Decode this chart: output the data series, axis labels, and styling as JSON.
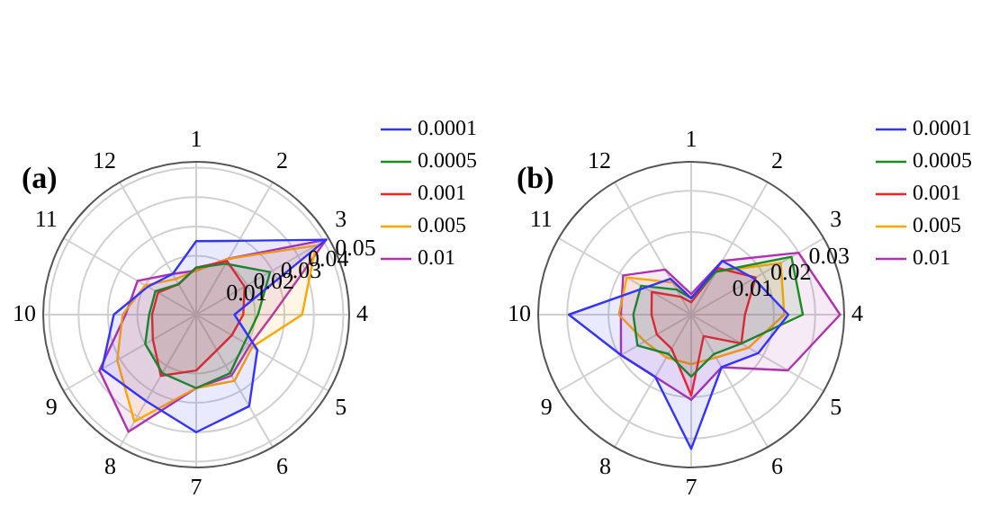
{
  "chart_data": [
    {
      "type": "radar",
      "title": "(a)",
      "categories": [
        "1",
        "2",
        "3",
        "4",
        "5",
        "6",
        "7",
        "8",
        "9",
        "10",
        "11",
        "12"
      ],
      "ylim": [
        0,
        0.052
      ],
      "yticks": [
        0.01,
        0.02,
        0.03,
        0.04,
        0.05
      ],
      "grid": true,
      "legend": "top right",
      "series": [
        {
          "name": "0.0001",
          "color": "#3333ff",
          "values": [
            0.025,
            0.029,
            0.051,
            0.013,
            0.024,
            0.036,
            0.04,
            0.034,
            0.037,
            0.028,
            0.019,
            0.016
          ]
        },
        {
          "name": "0.0005",
          "color": "#1a8c1a",
          "values": [
            0.016,
            0.02,
            0.029,
            0.021,
            0.019,
            0.023,
            0.025,
            0.023,
            0.02,
            0.016,
            0.016,
            0.012
          ]
        },
        {
          "name": "0.001",
          "color": "#ff2020",
          "values": [
            0.016,
            0.021,
            0.019,
            0.016,
            0.014,
            0.014,
            0.019,
            0.024,
            0.017,
            0.015,
            0.015,
            0.012
          ]
        },
        {
          "name": "0.005",
          "color": "#ffa500",
          "values": [
            0.015,
            0.022,
            0.047,
            0.036,
            0.022,
            0.026,
            0.025,
            0.042,
            0.031,
            0.025,
            0.02,
            0.014
          ]
        },
        {
          "name": "0.01",
          "color": "#b030b0",
          "values": [
            0.015,
            0.022,
            0.051,
            0.026,
            0.021,
            0.024,
            0.025,
            0.046,
            0.038,
            0.024,
            0.023,
            0.016
          ]
        }
      ]
    },
    {
      "type": "radar",
      "title": "(b)",
      "categories": [
        "1",
        "2",
        "3",
        "4",
        "5",
        "6",
        "7",
        "8",
        "9",
        "10",
        "11",
        "12"
      ],
      "ylim": [
        0,
        0.037
      ],
      "yticks": [
        0.01,
        0.02,
        0.03
      ],
      "grid": true,
      "legend": "top right",
      "series": [
        {
          "name": "0.0001",
          "color": "#3333ff",
          "values": [
            0.004,
            0.015,
            0.0175,
            0.0235,
            0.0187,
            0.0147,
            0.0325,
            0.0174,
            0.0196,
            0.0296,
            0.013,
            0.01
          ]
        },
        {
          "name": "0.0005",
          "color": "#1a8c1a",
          "values": [
            0.004,
            0.012,
            0.028,
            0.027,
            0.014,
            0.011,
            0.015,
            0.011,
            0.015,
            0.014,
            0.014,
            0.007
          ]
        },
        {
          "name": "0.001",
          "color": "#ff2020",
          "values": [
            0.003,
            0.013,
            0.018,
            0.013,
            0.014,
            0.006,
            0.0196,
            0.0095,
            0.0096,
            0.0096,
            0.011,
            0.005
          ]
        },
        {
          "name": "0.005",
          "color": "#ffa500",
          "values": [
            0.004,
            0.012,
            0.025,
            0.0225,
            0.016,
            0.012,
            0.012,
            0.012,
            0.013,
            0.0175,
            0.018,
            0.009
          ]
        },
        {
          "name": "0.01",
          "color": "#b030b0",
          "values": [
            0.005,
            0.015,
            0.03,
            0.036,
            0.027,
            0.0147,
            0.0206,
            0.0174,
            0.0196,
            0.017,
            0.019,
            0.0126
          ]
        }
      ]
    }
  ]
}
